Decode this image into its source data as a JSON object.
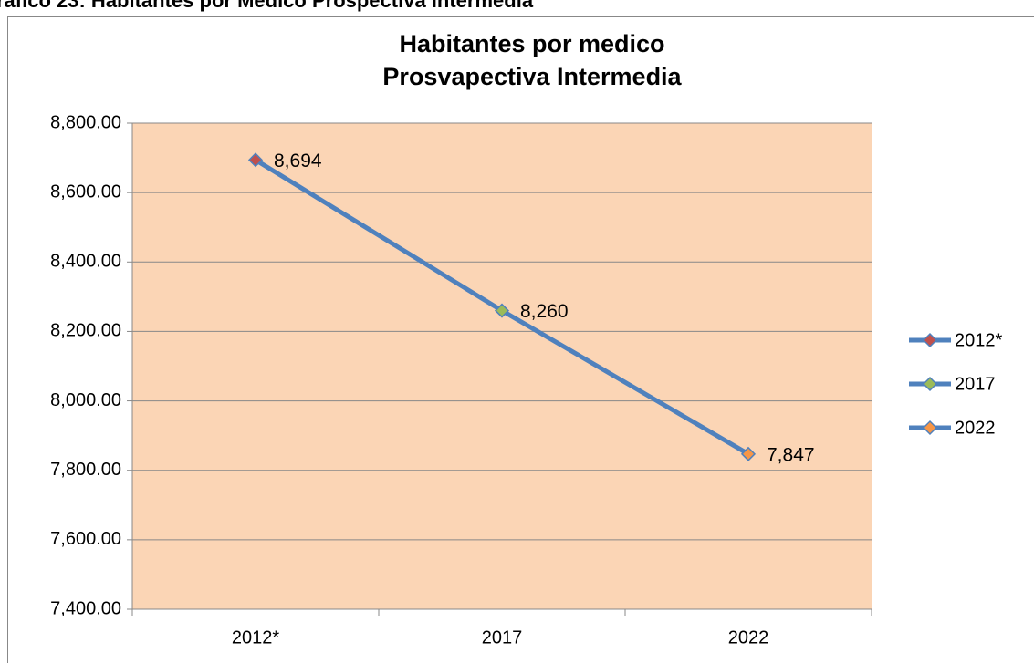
{
  "page_caption": "ráfico 23: Habitantes por Medico Prospectiva Intermedia",
  "chart_data": {
    "type": "line",
    "title": "Habitantes por medico",
    "subtitle": "Prosvapectiva Intermedia",
    "categories": [
      "2012*",
      "2017",
      "2022"
    ],
    "series": [
      {
        "name": "Habitantes por medico",
        "color": "#4f81bd",
        "values": [
          8694,
          8260,
          7847
        ],
        "value_labels": [
          "8,694",
          "8,260",
          "7,847"
        ],
        "point_colors": [
          "#c0504d",
          "#9bbb59",
          "#f79646"
        ]
      }
    ],
    "ylim": [
      7400,
      8800
    ],
    "yticks": [
      {
        "value": 7400,
        "label": "7,400.00"
      },
      {
        "value": 7600,
        "label": "7,600.00"
      },
      {
        "value": 7800,
        "label": "7,800.00"
      },
      {
        "value": 8000,
        "label": "8,000.00"
      },
      {
        "value": 8200,
        "label": "8,200.00"
      },
      {
        "value": 8400,
        "label": "8,400.00"
      },
      {
        "value": 8600,
        "label": "8,600.00"
      },
      {
        "value": 8800,
        "label": "8,800.00"
      }
    ],
    "grid": true,
    "plot_background": "#fbd5b5",
    "legend": "right"
  }
}
